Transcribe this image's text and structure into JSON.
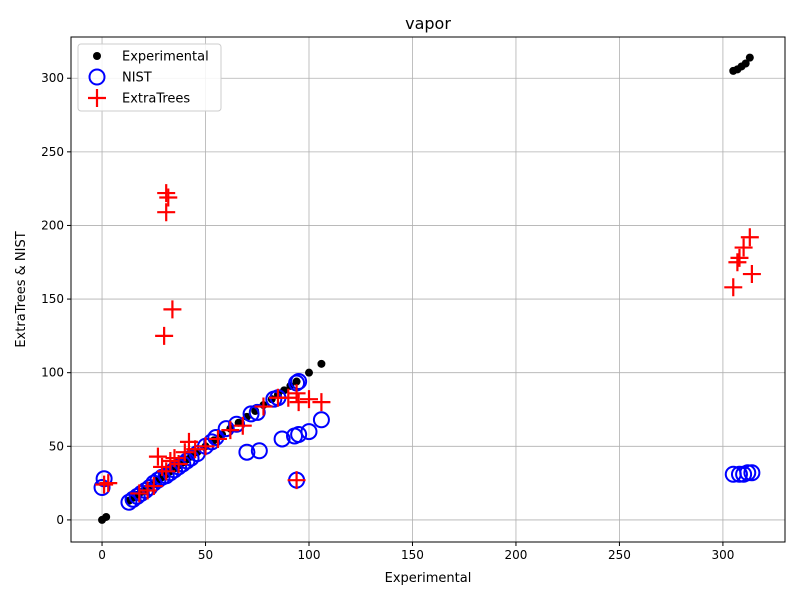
{
  "chart_data": {
    "type": "scatter",
    "title": "vapor",
    "xlabel": "Experimental",
    "ylabel": "ExtraTrees & NIST",
    "xlim": [
      -15,
      330
    ],
    "ylim": [
      -15,
      328
    ],
    "x_ticks": [
      0,
      50,
      100,
      150,
      200,
      250,
      300
    ],
    "y_ticks": [
      0,
      50,
      100,
      150,
      200,
      250,
      300
    ],
    "grid": true,
    "legend_position": "top-left",
    "series": [
      {
        "name": "Experimental",
        "marker": "filled-circle",
        "color": "#000000",
        "points": [
          [
            0,
            0
          ],
          [
            2,
            2
          ],
          [
            13,
            13
          ],
          [
            15,
            15
          ],
          [
            17,
            17
          ],
          [
            19,
            19
          ],
          [
            21,
            21
          ],
          [
            23,
            23
          ],
          [
            25,
            25
          ],
          [
            27,
            27
          ],
          [
            29,
            29
          ],
          [
            31,
            31
          ],
          [
            33,
            33
          ],
          [
            35,
            35
          ],
          [
            37,
            37
          ],
          [
            39,
            39
          ],
          [
            41,
            41
          ],
          [
            43,
            43
          ],
          [
            46,
            46
          ],
          [
            50,
            50
          ],
          [
            54,
            54
          ],
          [
            58,
            58
          ],
          [
            62,
            62
          ],
          [
            66,
            66
          ],
          [
            70,
            70
          ],
          [
            74,
            74
          ],
          [
            78,
            78
          ],
          [
            82,
            82
          ],
          [
            85,
            85
          ],
          [
            88,
            88
          ],
          [
            91,
            91
          ],
          [
            94,
            94
          ],
          [
            100,
            100
          ],
          [
            106,
            106
          ],
          [
            305,
            305
          ],
          [
            307,
            306
          ],
          [
            309,
            308
          ],
          [
            311,
            310
          ],
          [
            313,
            314
          ]
        ]
      },
      {
        "name": "NIST",
        "marker": "open-circle",
        "color": "#0000ff",
        "points": [
          [
            0,
            22
          ],
          [
            1,
            28
          ],
          [
            13,
            12
          ],
          [
            15,
            14
          ],
          [
            17,
            16
          ],
          [
            19,
            18
          ],
          [
            21,
            20
          ],
          [
            23,
            22
          ],
          [
            25,
            25
          ],
          [
            27,
            27
          ],
          [
            29,
            29
          ],
          [
            31,
            30
          ],
          [
            33,
            32
          ],
          [
            35,
            34
          ],
          [
            37,
            36
          ],
          [
            39,
            38
          ],
          [
            41,
            40
          ],
          [
            43,
            42
          ],
          [
            46,
            45
          ],
          [
            50,
            50
          ],
          [
            53,
            53
          ],
          [
            55,
            56
          ],
          [
            60,
            62
          ],
          [
            65,
            65
          ],
          [
            72,
            72
          ],
          [
            75,
            73
          ],
          [
            83,
            82
          ],
          [
            85,
            83
          ],
          [
            94,
            93
          ],
          [
            95,
            94
          ],
          [
            70,
            46
          ],
          [
            76,
            47
          ],
          [
            87,
            55
          ],
          [
            93,
            57
          ],
          [
            95,
            58
          ],
          [
            100,
            60
          ],
          [
            106,
            68
          ],
          [
            94,
            27
          ],
          [
            305,
            31
          ],
          [
            308,
            31
          ],
          [
            310,
            31
          ],
          [
            312,
            32
          ],
          [
            314,
            32
          ]
        ]
      },
      {
        "name": "ExtraTrees",
        "marker": "plus",
        "color": "#ff0000",
        "points": [
          [
            1,
            24
          ],
          [
            3,
            25
          ],
          [
            18,
            18
          ],
          [
            22,
            20
          ],
          [
            25,
            23
          ],
          [
            27,
            43
          ],
          [
            29,
            36
          ],
          [
            31,
            33
          ],
          [
            33,
            40
          ],
          [
            35,
            42
          ],
          [
            37,
            38
          ],
          [
            40,
            46
          ],
          [
            42,
            53
          ],
          [
            45,
            48
          ],
          [
            50,
            50
          ],
          [
            56,
            55
          ],
          [
            62,
            61
          ],
          [
            68,
            64
          ],
          [
            78,
            77
          ],
          [
            85,
            83
          ],
          [
            90,
            83
          ],
          [
            94,
            86
          ],
          [
            95,
            80
          ],
          [
            100,
            82
          ],
          [
            106,
            80
          ],
          [
            94,
            27
          ],
          [
            31,
            222
          ],
          [
            32,
            219
          ],
          [
            31,
            209
          ],
          [
            34,
            143
          ],
          [
            30,
            125
          ],
          [
            305,
            158
          ],
          [
            307,
            175
          ],
          [
            310,
            185
          ],
          [
            313,
            192
          ],
          [
            314,
            167
          ],
          [
            308,
            178
          ]
        ]
      }
    ]
  }
}
